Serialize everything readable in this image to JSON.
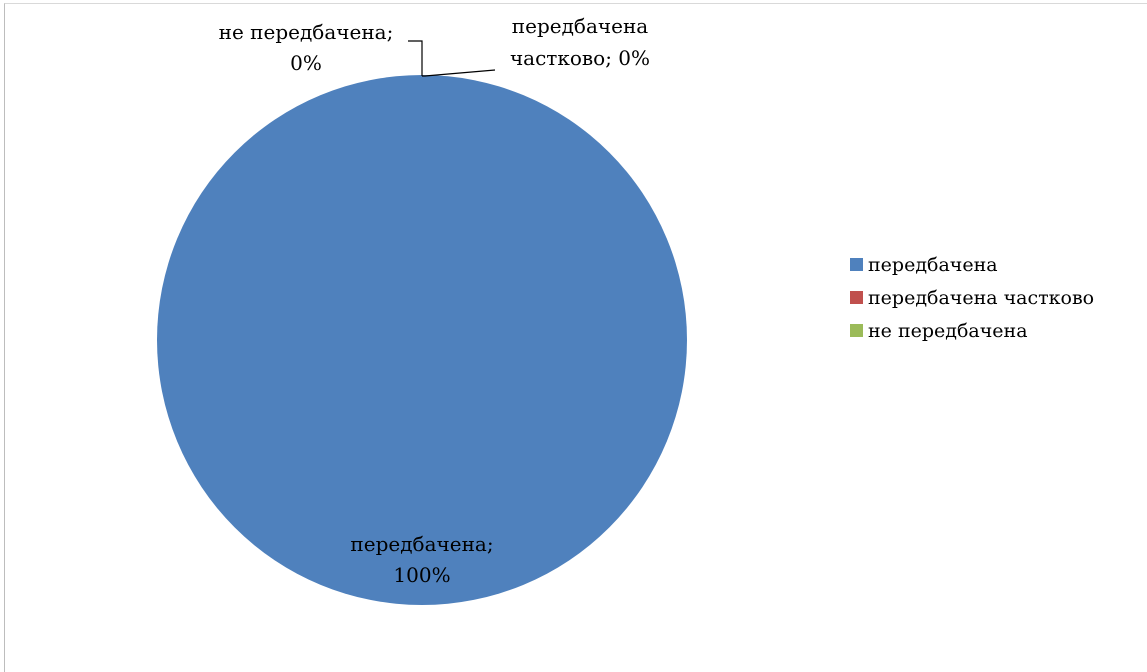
{
  "chart_data": {
    "type": "pie",
    "categories": [
      "передбачена",
      "передбачена частково",
      "не передбачена"
    ],
    "values": [
      100,
      0,
      0
    ],
    "colors": [
      "#4F81BD",
      "#C0504D",
      "#9BBB59"
    ],
    "data_labels": [
      {
        "line1": "передбачена;",
        "line2": "100%"
      },
      {
        "line1": "передбачена",
        "line2": "частково; 0%"
      },
      {
        "line1": "не передбачена;",
        "line2": "0%"
      }
    ],
    "legend": {
      "position": "right",
      "entries": [
        "передбачена",
        "передбачена частково",
        "не передбачена"
      ]
    },
    "title": ""
  }
}
